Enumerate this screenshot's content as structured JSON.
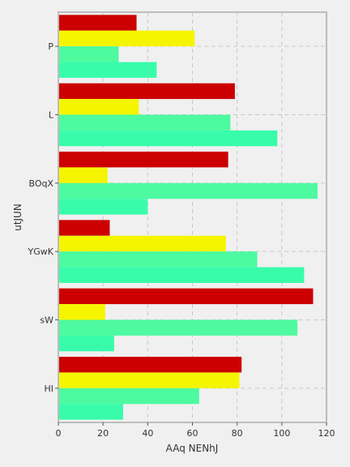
{
  "chart_data": {
    "type": "bar",
    "orientation": "horizontal",
    "categories": [
      "P",
      "L",
      "BOqX",
      "YGwK",
      "sW",
      "HI"
    ],
    "series": [
      {
        "values": [
          35,
          79,
          76,
          23,
          114,
          82
        ],
        "color": "#cc0000"
      },
      {
        "values": [
          61,
          36,
          22,
          75,
          21,
          81
        ],
        "color": "#f5f500"
      },
      {
        "values": [
          27,
          77,
          116,
          89,
          107,
          63
        ],
        "color": "#4dfaa0"
      },
      {
        "values": [
          44,
          98,
          40,
          110,
          25,
          29
        ],
        "color": "#39fcab"
      }
    ],
    "xlabel": "AAq NENhJ",
    "ylabel": "utJUN",
    "xlim": [
      0,
      120
    ],
    "xticks": [
      0,
      20,
      40,
      60,
      80,
      100,
      120
    ],
    "grid": true,
    "legend": "none"
  }
}
